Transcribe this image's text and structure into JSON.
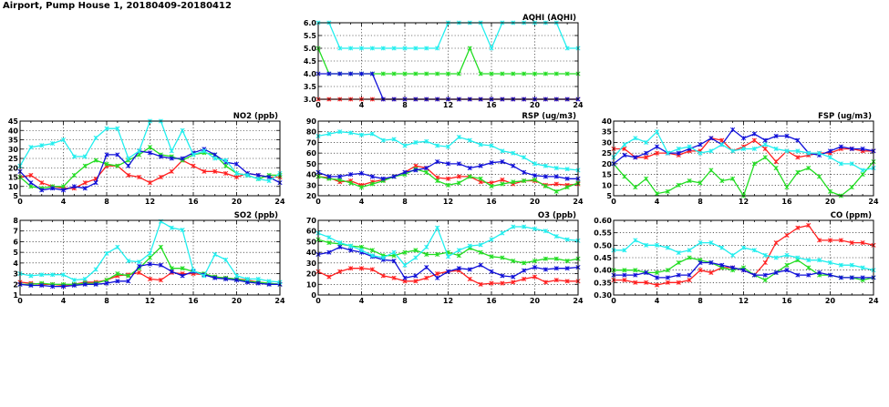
{
  "title": "Airport, Pump House 1, 20180409-20180412",
  "colors": {
    "red": "#ff2020",
    "green": "#22dd22",
    "blue": "#1010d8",
    "cyan": "#22eeee"
  },
  "chart_data": [
    {
      "id": "aqhi",
      "type": "line",
      "title": "AQHI (AQHI)",
      "xlabel": "",
      "ylabel": "",
      "xlim": [
        0,
        24
      ],
      "ylim": [
        3.0,
        6.0
      ],
      "xticks": [
        0,
        4,
        8,
        12,
        16,
        20,
        24
      ],
      "yticks": [
        3.0,
        3.5,
        4.0,
        4.5,
        5.0,
        5.5,
        6.0
      ],
      "yticklabels": [
        "3.0",
        "3.5",
        "4.0",
        "4.5",
        "5.0",
        "5.5",
        "6.0"
      ],
      "grid": true,
      "series": [
        {
          "name": "red",
          "color": "red",
          "values": [
            3,
            3,
            3,
            3,
            3,
            3,
            3,
            3,
            3,
            3,
            3,
            3,
            3,
            3,
            3,
            3,
            3,
            3,
            3,
            3,
            3,
            3,
            3,
            3,
            3
          ]
        },
        {
          "name": "green",
          "color": "green",
          "values": [
            5,
            4,
            4,
            4,
            4,
            4,
            4,
            4,
            4,
            4,
            4,
            4,
            4,
            4,
            5,
            4,
            4,
            4,
            4,
            4,
            4,
            4,
            4,
            4,
            4
          ]
        },
        {
          "name": "blue",
          "color": "blue",
          "values": [
            4,
            4,
            4,
            4,
            4,
            4,
            3,
            3,
            3,
            3,
            3,
            3,
            3,
            3,
            3,
            3,
            3,
            3,
            3,
            3,
            3,
            3,
            3,
            3,
            3
          ]
        },
        {
          "name": "cyan",
          "color": "cyan",
          "values": [
            6,
            6,
            5,
            5,
            5,
            5,
            5,
            5,
            5,
            5,
            5,
            5,
            6,
            6,
            6,
            6,
            5,
            6,
            6,
            6,
            6,
            6,
            6,
            5,
            5
          ]
        }
      ]
    },
    {
      "id": "no2",
      "type": "line",
      "title": "NO2 (ppb)",
      "xlabel": "",
      "ylabel": "",
      "xlim": [
        0,
        24
      ],
      "ylim": [
        5,
        45
      ],
      "xticks": [
        0,
        4,
        8,
        12,
        16,
        20,
        24
      ],
      "yticks": [
        5,
        10,
        15,
        20,
        25,
        30,
        35,
        40,
        45
      ],
      "yticklabels": [
        "5",
        "10",
        "15",
        "20",
        "25",
        "30",
        "35",
        "40",
        "45"
      ],
      "grid": true,
      "series": [
        {
          "name": "red",
          "color": "red",
          "values": [
            15,
            16,
            12,
            10,
            9,
            9,
            12,
            14,
            21,
            21,
            16,
            15,
            12,
            15,
            18,
            24,
            21,
            18,
            18,
            17,
            15,
            17,
            16,
            15,
            15
          ]
        },
        {
          "name": "green",
          "color": "green",
          "values": [
            15,
            10,
            9,
            10,
            10,
            16,
            21,
            24,
            22,
            21,
            24,
            27,
            31,
            27,
            26,
            24,
            27,
            28,
            27,
            21,
            17,
            16,
            14,
            16,
            16
          ]
        },
        {
          "name": "blue",
          "color": "blue",
          "values": [
            18,
            12,
            8,
            9,
            8,
            10,
            9,
            12,
            27,
            27,
            21,
            29,
            28,
            26,
            25,
            25,
            28,
            30,
            27,
            23,
            22,
            17,
            16,
            15,
            12
          ]
        },
        {
          "name": "cyan",
          "color": "cyan",
          "values": [
            21,
            31,
            32,
            33,
            35,
            26,
            26,
            36,
            41,
            41,
            25,
            29,
            45,
            45,
            29,
            40,
            27,
            29,
            25,
            24,
            17,
            16,
            14,
            13,
            17
          ]
        }
      ]
    },
    {
      "id": "rsp",
      "type": "line",
      "title": "RSP (ug/m3)",
      "xlabel": "",
      "ylabel": "",
      "xlim": [
        0,
        24
      ],
      "ylim": [
        20,
        90
      ],
      "xticks": [
        0,
        4,
        8,
        12,
        16,
        20,
        24
      ],
      "yticks": [
        20,
        30,
        40,
        50,
        60,
        70,
        80,
        90
      ],
      "yticklabels": [
        "20",
        "30",
        "40",
        "50",
        "60",
        "70",
        "80",
        "90"
      ],
      "grid": true,
      "series": [
        {
          "name": "red",
          "color": "red",
          "values": [
            38,
            37,
            33,
            34,
            30,
            33,
            35,
            38,
            42,
            48,
            46,
            37,
            36,
            38,
            38,
            33,
            32,
            35,
            31,
            34,
            34,
            30,
            31,
            30,
            31
          ]
        },
        {
          "name": "green",
          "color": "green",
          "values": [
            38,
            36,
            35,
            32,
            28,
            31,
            34,
            38,
            40,
            45,
            42,
            34,
            30,
            32,
            38,
            36,
            29,
            31,
            33,
            34,
            35,
            29,
            24,
            28,
            32
          ]
        },
        {
          "name": "blue",
          "color": "blue",
          "values": [
            42,
            38,
            38,
            40,
            41,
            38,
            36,
            38,
            42,
            44,
            46,
            52,
            50,
            50,
            46,
            48,
            51,
            52,
            48,
            42,
            39,
            38,
            38,
            36,
            36
          ]
        },
        {
          "name": "cyan",
          "color": "cyan",
          "values": [
            76,
            78,
            80,
            79,
            77,
            78,
            72,
            73,
            67,
            70,
            71,
            67,
            66,
            75,
            72,
            68,
            67,
            62,
            60,
            56,
            50,
            48,
            46,
            45,
            44
          ]
        }
      ]
    },
    {
      "id": "fsp",
      "type": "line",
      "title": "FSP (ug/m3)",
      "xlabel": "",
      "ylabel": "",
      "xlim": [
        0,
        24
      ],
      "ylim": [
        5,
        40
      ],
      "xticks": [
        0,
        4,
        8,
        12,
        16,
        20,
        24
      ],
      "yticks": [
        5,
        10,
        15,
        20,
        25,
        30,
        35,
        40
      ],
      "yticklabels": [
        "5",
        "10",
        "15",
        "20",
        "25",
        "30",
        "35",
        "40"
      ],
      "grid": true,
      "series": [
        {
          "name": "red",
          "color": "red",
          "values": [
            27,
            27,
            23,
            23,
            25,
            25,
            24,
            26,
            26,
            32,
            31,
            26,
            28,
            31,
            27,
            21,
            26,
            23,
            24,
            25,
            25,
            27,
            27,
            26,
            26
          ]
        },
        {
          "name": "green",
          "color": "green",
          "values": [
            20,
            14,
            9,
            13,
            6,
            7,
            10,
            12,
            11,
            17,
            12,
            13,
            5,
            20,
            23,
            18,
            9,
            16,
            18,
            14,
            7,
            5,
            9,
            15,
            21
          ]
        },
        {
          "name": "blue",
          "color": "blue",
          "values": [
            20,
            24,
            23,
            25,
            28,
            25,
            25,
            27,
            29,
            32,
            29,
            36,
            32,
            34,
            31,
            33,
            33,
            31,
            25,
            24,
            26,
            28,
            27,
            27,
            26
          ]
        },
        {
          "name": "cyan",
          "color": "cyan",
          "values": [
            23,
            29,
            32,
            30,
            35,
            25,
            27,
            28,
            25,
            26,
            29,
            26,
            27,
            27,
            29,
            27,
            26,
            26,
            25,
            25,
            23,
            20,
            20,
            17,
            18
          ]
        }
      ]
    },
    {
      "id": "so2",
      "type": "line",
      "title": "SO2 (ppb)",
      "xlabel": "",
      "ylabel": "",
      "xlim": [
        0,
        24
      ],
      "ylim": [
        1,
        8
      ],
      "xticks": [
        0,
        4,
        8,
        12,
        16,
        20,
        24
      ],
      "yticks": [
        1,
        2,
        3,
        4,
        5,
        6,
        7,
        8
      ],
      "yticklabels": [
        "1",
        "2",
        "3",
        "4",
        "5",
        "6",
        "7",
        "8"
      ],
      "grid": true,
      "series": [
        {
          "name": "red",
          "color": "red",
          "values": [
            2.2,
            2.1,
            2.0,
            2.0,
            1.9,
            2.0,
            2.2,
            2.2,
            2.4,
            2.8,
            2.9,
            3.1,
            2.5,
            2.4,
            3.1,
            3.0,
            3.0,
            2.9,
            2.7,
            2.6,
            2.5,
            2.4,
            2.2,
            2.1,
            2.0
          ]
        },
        {
          "name": "green",
          "color": "green",
          "values": [
            2.0,
            2.0,
            2.1,
            2.0,
            2.0,
            2.0,
            2.1,
            2.1,
            2.4,
            3.0,
            2.8,
            3.5,
            4.5,
            5.5,
            3.5,
            3.5,
            3.2,
            3.0,
            2.7,
            2.6,
            2.5,
            2.3,
            2.2,
            2.1,
            2.0
          ]
        },
        {
          "name": "blue",
          "color": "blue",
          "values": [
            2.0,
            1.9,
            1.9,
            1.8,
            1.8,
            1.9,
            2.0,
            2.0,
            2.1,
            2.3,
            2.3,
            3.7,
            3.9,
            3.8,
            3.2,
            2.8,
            3.2,
            2.9,
            2.6,
            2.5,
            2.4,
            2.2,
            2.1,
            2.0,
            2.0
          ]
        },
        {
          "name": "cyan",
          "color": "cyan",
          "values": [
            3.0,
            2.8,
            2.9,
            2.9,
            2.9,
            2.4,
            2.5,
            3.4,
            4.9,
            5.5,
            4.2,
            4.1,
            4.9,
            7.9,
            7.3,
            7.1,
            3.3,
            2.8,
            4.8,
            4.3,
            2.8,
            2.5,
            2.5,
            2.3,
            2.2
          ]
        }
      ]
    },
    {
      "id": "o3",
      "type": "line",
      "title": "O3 (ppb)",
      "xlabel": "",
      "ylabel": "",
      "xlim": [
        0,
        24
      ],
      "ylim": [
        0,
        70
      ],
      "xticks": [
        0,
        4,
        8,
        12,
        16,
        20,
        24
      ],
      "yticks": [
        0,
        10,
        20,
        30,
        40,
        50,
        60,
        70
      ],
      "yticklabels": [
        "0",
        "10",
        "20",
        "30",
        "40",
        "50",
        "60",
        "70"
      ],
      "grid": true,
      "series": [
        {
          "name": "red",
          "color": "red",
          "values": [
            22,
            17,
            22,
            25,
            25,
            24,
            18,
            16,
            13,
            13,
            16,
            20,
            22,
            23,
            15,
            10,
            11,
            11,
            12,
            15,
            17,
            12,
            14,
            13,
            13
          ]
        },
        {
          "name": "green",
          "color": "green",
          "values": [
            52,
            49,
            48,
            46,
            45,
            42,
            37,
            37,
            40,
            42,
            38,
            38,
            40,
            37,
            44,
            40,
            36,
            35,
            32,
            30,
            32,
            34,
            34,
            32,
            34
          ]
        },
        {
          "name": "blue",
          "color": "blue",
          "values": [
            38,
            40,
            45,
            42,
            40,
            36,
            33,
            32,
            16,
            18,
            26,
            16,
            22,
            25,
            24,
            28,
            22,
            18,
            17,
            23,
            26,
            24,
            25,
            25,
            26
          ]
        },
        {
          "name": "cyan",
          "color": "cyan",
          "values": [
            58,
            54,
            49,
            46,
            42,
            37,
            35,
            40,
            28,
            35,
            45,
            63,
            36,
            42,
            46,
            47,
            52,
            58,
            64,
            64,
            62,
            60,
            55,
            52,
            51
          ]
        }
      ]
    },
    {
      "id": "co",
      "type": "line",
      "title": "CO (ppm)",
      "xlabel": "",
      "ylabel": "",
      "xlim": [
        0,
        24
      ],
      "ylim": [
        0.3,
        0.6
      ],
      "xticks": [
        0,
        4,
        8,
        12,
        16,
        20,
        24
      ],
      "yticks": [
        0.3,
        0.35,
        0.4,
        0.45,
        0.5,
        0.55,
        0.6
      ],
      "yticklabels": [
        "0.30",
        "0.35",
        "0.40",
        "0.45",
        "0.50",
        "0.55",
        "0.60"
      ],
      "grid": true,
      "series": [
        {
          "name": "red",
          "color": "red",
          "values": [
            0.36,
            0.36,
            0.35,
            0.35,
            0.34,
            0.35,
            0.35,
            0.36,
            0.4,
            0.39,
            0.41,
            0.41,
            0.4,
            0.38,
            0.43,
            0.51,
            0.54,
            0.57,
            0.58,
            0.52,
            0.52,
            0.52,
            0.51,
            0.51,
            0.5
          ]
        },
        {
          "name": "green",
          "color": "green",
          "values": [
            0.4,
            0.4,
            0.4,
            0.39,
            0.39,
            0.4,
            0.43,
            0.45,
            0.44,
            0.43,
            0.41,
            0.4,
            0.41,
            0.38,
            0.36,
            0.39,
            0.42,
            0.44,
            0.41,
            0.38,
            0.38,
            0.37,
            0.37,
            0.36,
            0.37
          ]
        },
        {
          "name": "blue",
          "color": "blue",
          "values": [
            0.38,
            0.38,
            0.38,
            0.39,
            0.37,
            0.37,
            0.38,
            0.38,
            0.43,
            0.43,
            0.42,
            0.41,
            0.4,
            0.38,
            0.38,
            0.39,
            0.4,
            0.38,
            0.38,
            0.39,
            0.38,
            0.37,
            0.37,
            0.37,
            0.37
          ]
        },
        {
          "name": "cyan",
          "color": "cyan",
          "values": [
            0.48,
            0.48,
            0.52,
            0.5,
            0.5,
            0.49,
            0.47,
            0.48,
            0.51,
            0.51,
            0.49,
            0.46,
            0.49,
            0.48,
            0.46,
            0.45,
            0.46,
            0.45,
            0.44,
            0.44,
            0.43,
            0.42,
            0.42,
            0.41,
            0.4
          ]
        }
      ]
    }
  ]
}
